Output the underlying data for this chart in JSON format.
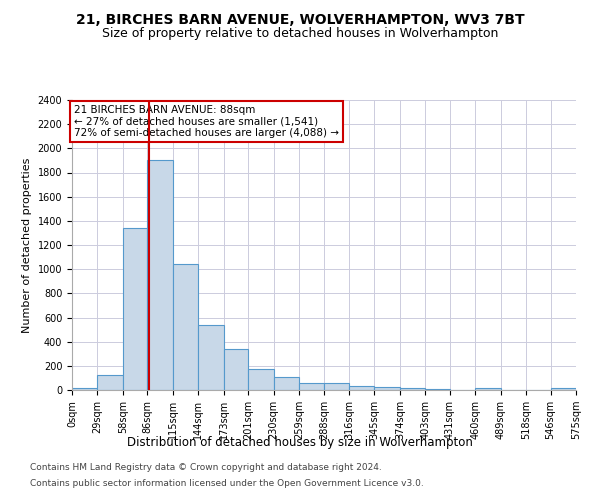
{
  "title1": "21, BIRCHES BARN AVENUE, WOLVERHAMPTON, WV3 7BT",
  "title2": "Size of property relative to detached houses in Wolverhampton",
  "xlabel": "Distribution of detached houses by size in Wolverhampton",
  "ylabel": "Number of detached properties",
  "bin_edges": [
    0,
    29,
    58,
    86,
    115,
    144,
    173,
    201,
    230,
    259,
    288,
    316,
    345,
    374,
    403,
    431,
    460,
    489,
    518,
    546,
    575
  ],
  "bar_heights": [
    15,
    125,
    1340,
    1900,
    1040,
    540,
    340,
    170,
    110,
    60,
    55,
    35,
    25,
    20,
    10,
    0,
    20,
    0,
    0,
    20
  ],
  "bar_color": "#c8d8e8",
  "bar_edge_color": "#5599cc",
  "property_size": 88,
  "red_line_color": "#cc0000",
  "annotation_text": "21 BIRCHES BARN AVENUE: 88sqm\n← 27% of detached houses are smaller (1,541)\n72% of semi-detached houses are larger (4,088) →",
  "annotation_box_color": "#cc0000",
  "ylim": [
    0,
    2400
  ],
  "yticks": [
    0,
    200,
    400,
    600,
    800,
    1000,
    1200,
    1400,
    1600,
    1800,
    2000,
    2200,
    2400
  ],
  "footnote1": "Contains HM Land Registry data © Crown copyright and database right 2024.",
  "footnote2": "Contains public sector information licensed under the Open Government Licence v3.0.",
  "bg_color": "#ffffff",
  "grid_color": "#ccccdd",
  "title1_fontsize": 10,
  "title2_fontsize": 9,
  "tick_label_fontsize": 7,
  "axis_label_fontsize": 8.5,
  "ylabel_fontsize": 8,
  "footnote_fontsize": 6.5
}
